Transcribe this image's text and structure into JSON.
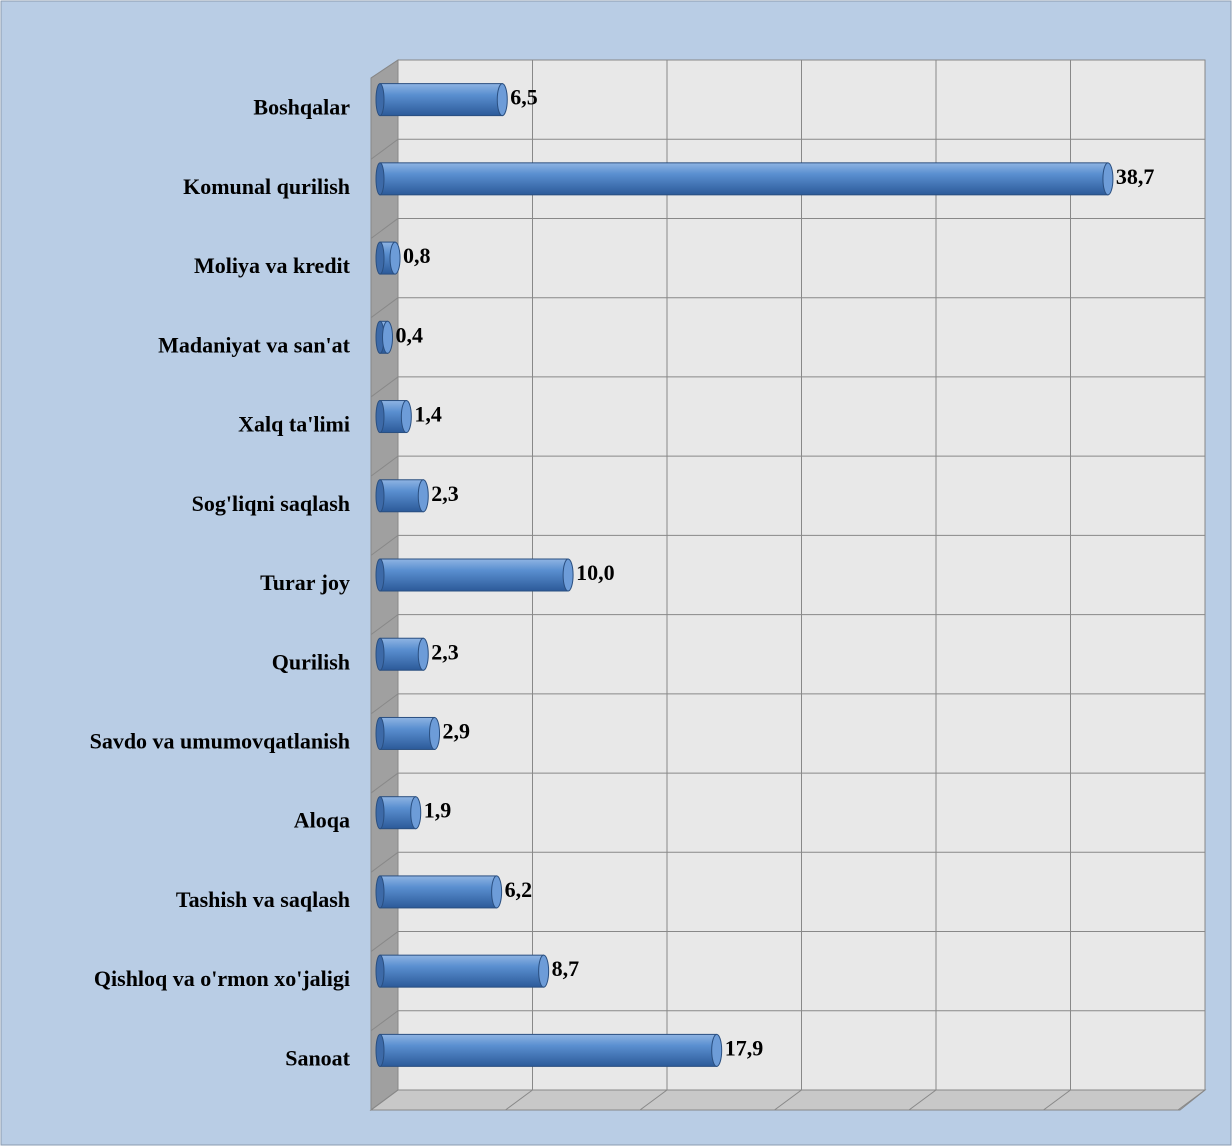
{
  "chart_data": {
    "type": "bar",
    "orientation": "horizontal",
    "categories": [
      "Boshqalar",
      "Komunal qurilish",
      "Moliya va kredit",
      "Madaniyat va san'at",
      "Xalq ta'limi",
      "Sog'liqni saqlash",
      "Turar joy",
      "Qurilish",
      "Savdo va umumovqatlanish",
      "Aloqa",
      "Tashish va saqlash",
      "Qishloq va o'rmon xo'jaligi",
      "Sanoat"
    ],
    "values": [
      6.5,
      38.7,
      0.8,
      0.4,
      1.4,
      2.3,
      10.0,
      2.3,
      2.9,
      1.9,
      6.2,
      8.7,
      17.9
    ],
    "value_labels": [
      "6,5",
      "38,7",
      "0,8",
      "0,4",
      "1,4",
      "2,3",
      "10,0",
      "2,3",
      "2,9",
      "1,9",
      "6,2",
      "8,7",
      "17,9"
    ],
    "color": "#4f81bd",
    "xlim": [
      0,
      42
    ],
    "grid": true
  }
}
